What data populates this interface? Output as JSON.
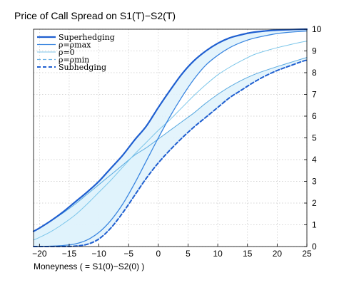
{
  "chart_data": {
    "type": "line",
    "title": "Price of Call Spread on S1(T)−S2(T)",
    "xlabel": "Moneyness ( = S1(0)−S2(0) )",
    "ylabel": "",
    "xlim": [
      -21,
      25
    ],
    "ylim": [
      0,
      10
    ],
    "x_ticks": [
      "−20",
      "−15",
      "−10",
      "−5",
      "0",
      "5",
      "10",
      "15",
      "20",
      "25"
    ],
    "y_ticks": [
      "0",
      "1",
      "2",
      "3",
      "4",
      "5",
      "6",
      "7",
      "8",
      "9",
      "10"
    ],
    "y_axis_side": "right",
    "grid": true,
    "legend_position": "top-left",
    "shaded_regions": "light blue fill between the Superhedging and ρ=ρmax curves and between the ρ=ρmin curve and the Subhedging bound",
    "x": [
      -21,
      -20,
      -18,
      -16,
      -14,
      -12,
      -10,
      -8,
      -6,
      -4,
      -2,
      0,
      2,
      4,
      6,
      8,
      10,
      12,
      14,
      16,
      18,
      20,
      22,
      24,
      25
    ],
    "series": [
      {
        "name": "Superhedging",
        "color": "#1f5fd0",
        "style": "solid-thick",
        "values": [
          0.7,
          0.85,
          1.2,
          1.6,
          2.05,
          2.5,
          3.0,
          3.6,
          4.2,
          4.9,
          5.55,
          6.4,
          7.2,
          7.95,
          8.55,
          9.0,
          9.35,
          9.6,
          9.75,
          9.86,
          9.92,
          9.96,
          9.98,
          9.995,
          10.0
        ]
      },
      {
        "name": "ρ=ρmax",
        "color": "#3a86e0",
        "style": "solid",
        "values": [
          0.0,
          0.0,
          0.02,
          0.05,
          0.12,
          0.3,
          0.65,
          1.2,
          1.95,
          2.9,
          3.95,
          5.0,
          6.0,
          6.9,
          7.7,
          8.35,
          8.8,
          9.15,
          9.4,
          9.58,
          9.7,
          9.8,
          9.86,
          9.9,
          9.92
        ]
      },
      {
        "name": "ρ=0",
        "color": "#7cc6ea",
        "style": "solid-thin",
        "values": [
          0.3,
          0.42,
          0.7,
          1.05,
          1.45,
          1.95,
          2.5,
          3.05,
          3.65,
          4.25,
          4.8,
          5.35,
          5.85,
          6.4,
          6.95,
          7.45,
          7.9,
          8.25,
          8.55,
          8.82,
          9.0,
          9.15,
          9.28,
          9.4,
          9.45
        ]
      },
      {
        "name": "ρ=ρmin",
        "color": "#6fb4e6",
        "style": "dashed",
        "values": [
          0.0,
          0.0,
          0.0,
          0.0,
          0.02,
          0.1,
          0.35,
          0.85,
          1.55,
          2.35,
          3.15,
          3.85,
          4.45,
          5.0,
          5.5,
          5.95,
          6.4,
          6.85,
          7.2,
          7.55,
          7.85,
          8.1,
          8.3,
          8.5,
          8.58
        ]
      },
      {
        "name": "Subhedging",
        "color": "#1f5fd0",
        "style": "dashed-thick",
        "values": [
          0.0,
          0.0,
          0.0,
          0.0,
          0.02,
          0.1,
          0.35,
          0.85,
          1.55,
          2.35,
          3.15,
          3.85,
          4.45,
          5.0,
          5.5,
          5.95,
          6.4,
          6.85,
          7.2,
          7.55,
          7.85,
          8.1,
          8.3,
          8.5,
          8.58
        ]
      },
      {
        "name": "",
        "color": "#5aaae0",
        "style": "solid-thin",
        "values": [
          0.7,
          0.85,
          1.2,
          1.55,
          1.95,
          2.4,
          2.85,
          3.3,
          3.75,
          4.2,
          4.55,
          4.95,
          5.35,
          5.75,
          6.15,
          6.6,
          7.0,
          7.35,
          7.65,
          7.9,
          8.1,
          8.28,
          8.45,
          8.62,
          8.7
        ]
      }
    ]
  }
}
